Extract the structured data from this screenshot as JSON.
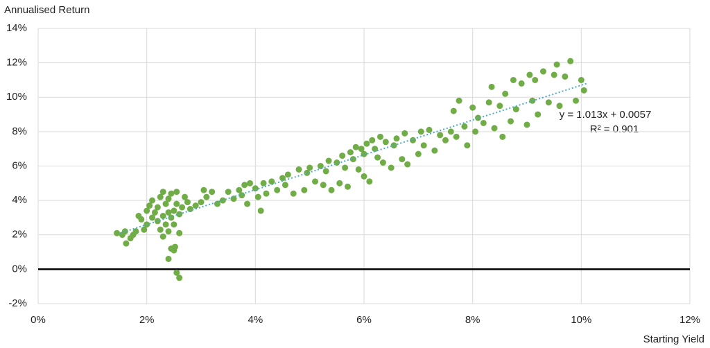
{
  "chart_data": {
    "type": "scatter",
    "y_label": "Annualised Return",
    "x_label": "Starting Yield",
    "xlim": [
      0,
      12
    ],
    "xticks": [
      {
        "value": 0,
        "label": "0%"
      },
      {
        "value": 2,
        "label": "2%"
      },
      {
        "value": 4,
        "label": "4%"
      },
      {
        "value": 6,
        "label": "6%"
      },
      {
        "value": 8,
        "label": "8%"
      },
      {
        "value": 10,
        "label": "10%"
      },
      {
        "value": 12,
        "label": "12%"
      }
    ],
    "ylim": [
      -2,
      14
    ],
    "yticks": [
      {
        "value": -2,
        "label": "-2%"
      },
      {
        "value": 0,
        "label": "0%"
      },
      {
        "value": 2,
        "label": "2%"
      },
      {
        "value": 4,
        "label": "4%"
      },
      {
        "value": 6,
        "label": "6%"
      },
      {
        "value": 8,
        "label": "8%"
      },
      {
        "value": 10,
        "label": "10%"
      },
      {
        "value": 12,
        "label": "12%"
      },
      {
        "value": 14,
        "label": "14%"
      }
    ],
    "grid": true,
    "color": "#70ad47",
    "x": [
      1.45,
      1.55,
      1.6,
      1.62,
      1.7,
      1.75,
      1.8,
      1.85,
      1.9,
      1.95,
      2.0,
      2.0,
      2.05,
      2.1,
      2.1,
      2.15,
      2.2,
      2.2,
      2.25,
      2.25,
      2.3,
      2.3,
      2.3,
      2.35,
      2.35,
      2.4,
      2.4,
      2.4,
      2.45,
      2.45,
      2.5,
      2.5,
      2.55,
      2.55,
      2.6,
      2.6,
      2.4,
      2.45,
      2.5,
      2.52,
      2.55,
      2.6,
      2.65,
      2.7,
      2.75,
      2.8,
      2.9,
      3.0,
      3.05,
      3.1,
      3.2,
      3.3,
      3.4,
      3.5,
      3.6,
      3.7,
      3.75,
      3.8,
      3.85,
      3.9,
      4.0,
      4.05,
      4.1,
      4.15,
      4.2,
      4.3,
      4.4,
      4.5,
      4.55,
      4.6,
      4.7,
      4.8,
      4.9,
      4.95,
      5.0,
      5.1,
      5.2,
      5.25,
      5.3,
      5.35,
      5.4,
      5.5,
      5.55,
      5.6,
      5.65,
      5.7,
      5.75,
      5.8,
      5.85,
      5.9,
      5.95,
      6.0,
      6.0,
      6.05,
      6.1,
      6.15,
      6.2,
      6.25,
      6.3,
      6.35,
      6.4,
      6.5,
      6.55,
      6.6,
      6.7,
      6.75,
      6.8,
      6.9,
      7.0,
      7.05,
      7.1,
      7.2,
      7.3,
      7.4,
      7.5,
      7.6,
      7.65,
      7.7,
      7.75,
      7.85,
      7.9,
      8.0,
      8.05,
      8.1,
      8.2,
      8.3,
      8.35,
      8.4,
      8.5,
      8.55,
      8.6,
      8.7,
      8.75,
      8.8,
      8.9,
      9.0,
      9.05,
      9.1,
      9.15,
      9.2,
      9.3,
      9.4,
      9.5,
      9.55,
      9.6,
      9.7,
      9.8,
      9.9,
      10.0,
      10.05
    ],
    "values": [
      2.1,
      2.0,
      2.2,
      1.5,
      1.8,
      2.0,
      2.2,
      3.1,
      2.9,
      2.3,
      3.4,
      2.6,
      3.7,
      3.0,
      4.0,
      3.3,
      2.8,
      3.6,
      2.3,
      4.2,
      4.5,
      3.1,
      1.9,
      2.6,
      3.8,
      4.1,
      3.3,
      2.2,
      4.4,
      3.0,
      3.4,
      2.6,
      3.8,
      4.5,
      3.2,
      2.1,
      0.6,
      1.2,
      1.1,
      1.3,
      -0.2,
      -0.5,
      3.6,
      4.2,
      3.9,
      3.5,
      3.7,
      3.9,
      4.6,
      4.2,
      4.5,
      3.8,
      4.0,
      4.5,
      4.1,
      4.6,
      4.3,
      4.9,
      3.8,
      5.0,
      4.7,
      4.2,
      3.4,
      5.0,
      4.4,
      5.1,
      4.6,
      5.3,
      4.9,
      5.5,
      4.4,
      5.8,
      4.6,
      5.6,
      5.9,
      5.1,
      6.0,
      4.9,
      5.7,
      6.3,
      4.6,
      6.2,
      5.0,
      6.6,
      5.9,
      4.8,
      6.8,
      6.4,
      7.1,
      5.8,
      7.0,
      6.7,
      5.4,
      7.3,
      5.1,
      7.5,
      7.0,
      6.5,
      7.7,
      6.2,
      7.4,
      5.9,
      7.2,
      7.6,
      6.4,
      7.9,
      6.1,
      7.5,
      6.7,
      8.0,
      7.2,
      8.1,
      6.9,
      7.8,
      7.5,
      8.0,
      9.2,
      7.7,
      9.8,
      8.3,
      7.2,
      9.4,
      8.0,
      8.8,
      8.5,
      9.7,
      10.6,
      8.2,
      9.5,
      7.7,
      10.2,
      8.6,
      11.0,
      9.3,
      10.8,
      8.4,
      11.3,
      9.8,
      11.0,
      9.0,
      11.5,
      9.7,
      11.3,
      11.9,
      9.5,
      11.2,
      12.1,
      9.8,
      11.0,
      10.4
    ],
    "trendline": {
      "color": "#4bacc6",
      "x": [
        1.5,
        10.1
      ],
      "values": [
        2.09,
        10.8
      ],
      "equation": "y = 1.013x + 0.0057",
      "r_squared": "R² = 0.901"
    }
  }
}
